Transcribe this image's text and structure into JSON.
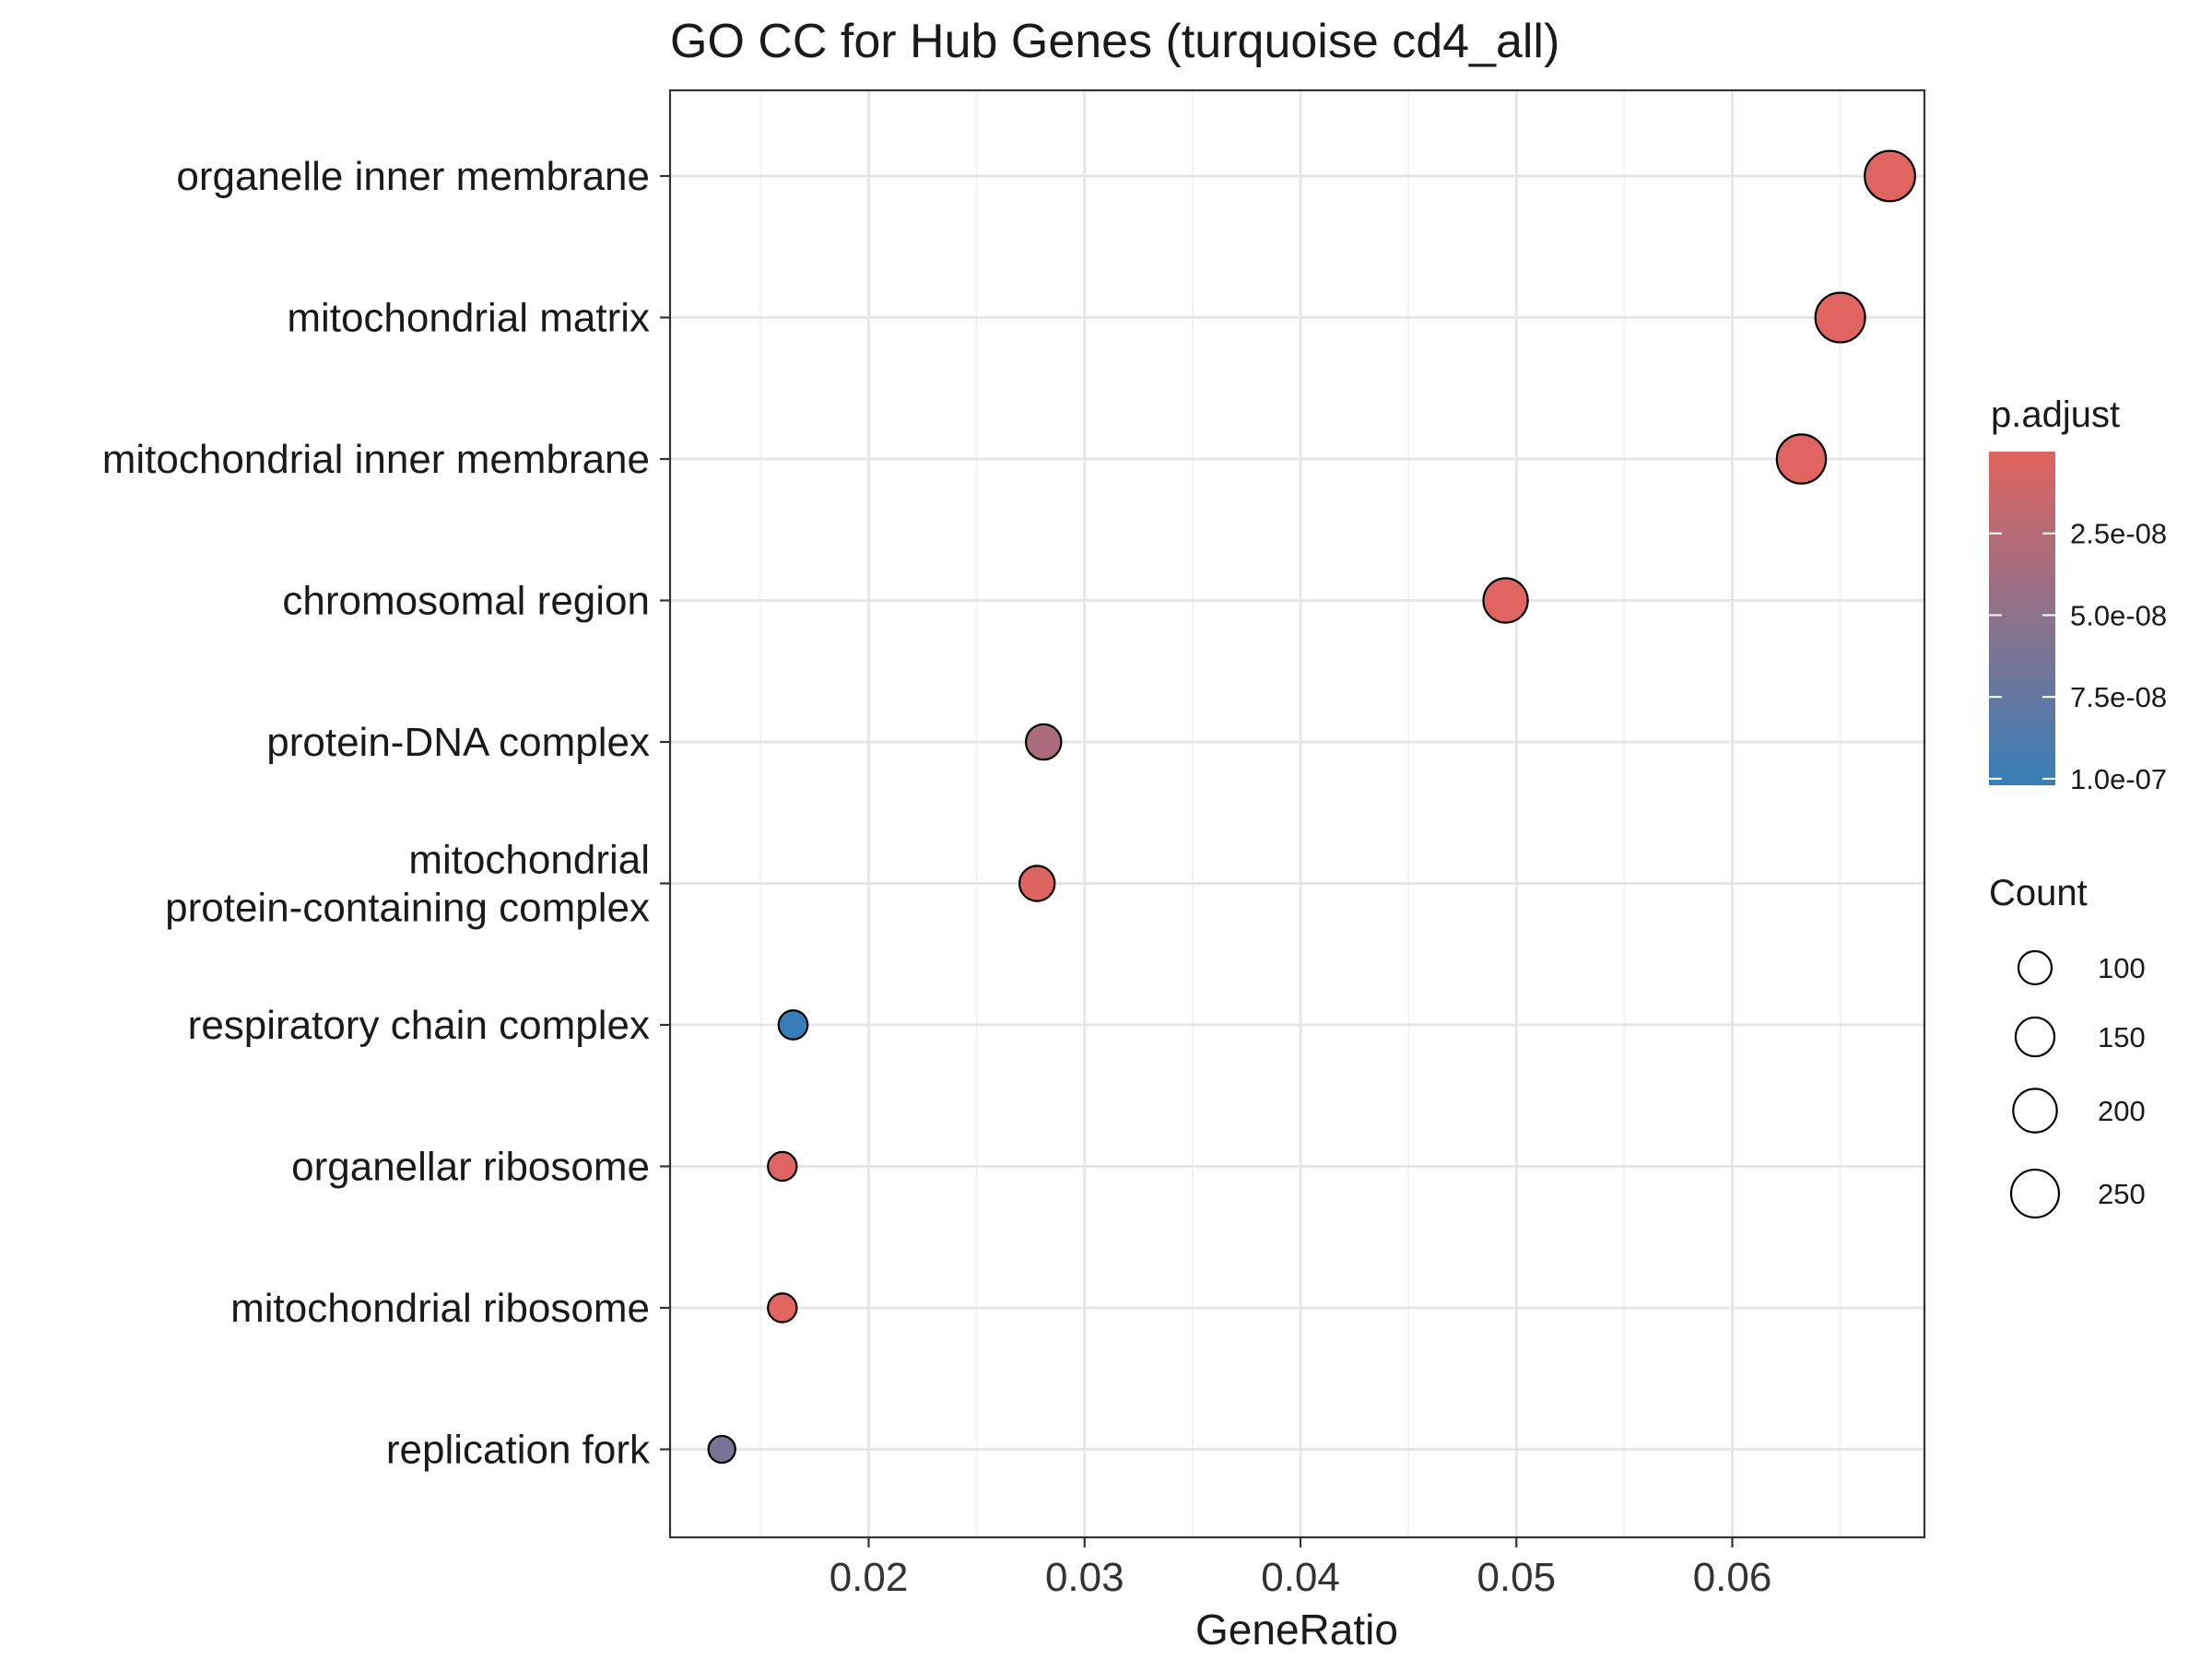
{
  "chart_data": {
    "type": "scatter",
    "title": "GO CC for Hub Genes (turquoise cd4_all)",
    "xlabel": "GeneRatio",
    "ylabel": "",
    "xlim": [
      0.0108,
      0.0689
    ],
    "x_ticks": [
      0.02,
      0.03,
      0.04,
      0.05,
      0.06
    ],
    "x_tick_labels": [
      "0.02",
      "0.03",
      "0.04",
      "0.05",
      "0.06"
    ],
    "grid": true,
    "categories": [
      [
        "organelle inner membrane"
      ],
      [
        "mitochondrial matrix"
      ],
      [
        "mitochondrial inner membrane"
      ],
      [
        "chromosomal region"
      ],
      [
        "protein-DNA complex"
      ],
      [
        "mitochondrial",
        "protein-containing complex"
      ],
      [
        "respiratory chain complex"
      ],
      [
        "organellar ribosome"
      ],
      [
        "mitochondrial ribosome"
      ],
      [
        "replication fork"
      ]
    ],
    "points": [
      {
        "gene_ratio": 0.0673,
        "count": 283,
        "p_adjust": 1e-12
      },
      {
        "gene_ratio": 0.065,
        "count": 274,
        "p_adjust": 1e-12
      },
      {
        "gene_ratio": 0.0632,
        "count": 266,
        "p_adjust": 1e-12
      },
      {
        "gene_ratio": 0.0495,
        "count": 209,
        "p_adjust": 1e-12
      },
      {
        "gene_ratio": 0.0281,
        "count": 118,
        "p_adjust": 3.2e-08
      },
      {
        "gene_ratio": 0.0278,
        "count": 117,
        "p_adjust": 1e-09
      },
      {
        "gene_ratio": 0.0165,
        "count": 70,
        "p_adjust": 1.02e-07
      },
      {
        "gene_ratio": 0.016,
        "count": 68,
        "p_adjust": 1e-12
      },
      {
        "gene_ratio": 0.016,
        "count": 68,
        "p_adjust": 1e-12
      },
      {
        "gene_ratio": 0.0132,
        "count": 56,
        "p_adjust": 6.2e-08
      }
    ],
    "legend": {
      "color": {
        "title": "p.adjust",
        "breaks": [
          2.5e-08,
          5e-08,
          7.5e-08,
          1e-07
        ],
        "labels": [
          "2.5e-08",
          "5.0e-08",
          "7.5e-08",
          "1.0e-07"
        ],
        "low_color": "#E0645F",
        "high_color": "#377EB8"
      },
      "size": {
        "title": "Count",
        "breaks": [
          100,
          150,
          200,
          250
        ],
        "labels": [
          "100",
          "150",
          "200",
          "250"
        ]
      },
      "position": "right"
    }
  }
}
